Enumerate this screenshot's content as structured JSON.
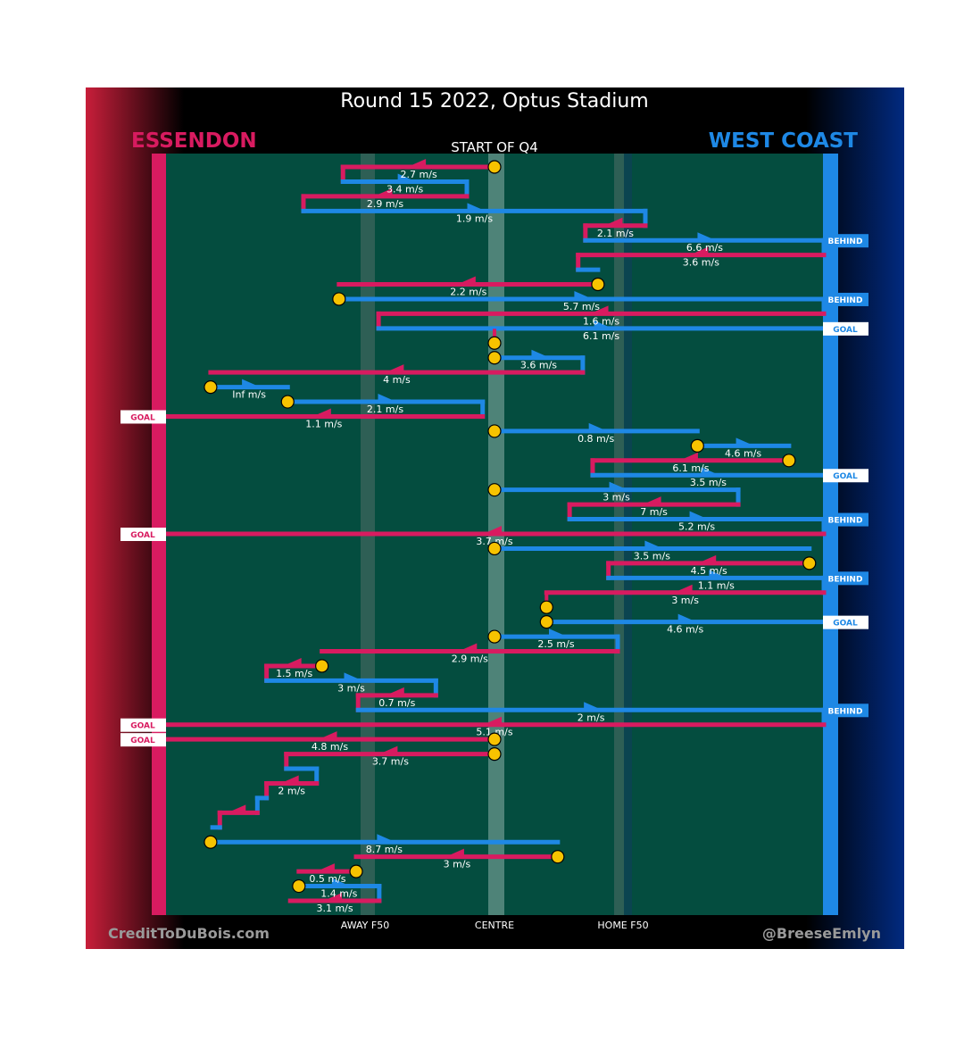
{
  "title": "Round 15 2022, Optus Stadium",
  "teams": {
    "home_left": {
      "name": "ESSENDON",
      "color": "#d81b60"
    },
    "away_right": {
      "name": "WEST COAST",
      "color": "#1e88e5"
    }
  },
  "period_label": "START OF Q4",
  "field_labels": {
    "away_f50": "AWAY F50",
    "centre": "CENTRE",
    "home_f50": "HOME F50"
  },
  "credits": {
    "left": "CreditToDuBois.com",
    "right": "@BreeseEmlyn"
  },
  "colors": {
    "field": "#044d3f",
    "marker": "#f7c300",
    "centre_band": "#4e8378",
    "f50_band": "#2e5f55"
  },
  "chart_data": {
    "type": "line",
    "description_axis": "field position (0 = Essendon end, 100 = West Coast end), one row per possession segment",
    "xlim": [
      0,
      100
    ],
    "segments": [
      {
        "team": "E",
        "from": 50,
        "to": 27.0,
        "speed": "2.7 m/s",
        "stoppage": true
      },
      {
        "team": "W",
        "from": 27.0,
        "to": 45.8,
        "speed": "3.4 m/s"
      },
      {
        "team": "E",
        "from": 45.8,
        "to": 21.0,
        "speed": "2.9 m/s"
      },
      {
        "team": "W",
        "from": 21.0,
        "to": 72.9,
        "speed": "1.9 m/s"
      },
      {
        "team": "E",
        "from": 72.9,
        "to": 63.8,
        "speed": "2.1 m/s"
      },
      {
        "team": "W",
        "from": 63.8,
        "to": 100,
        "speed": "6.6 m/s",
        "result": "BEHIND"
      },
      {
        "team": "E",
        "from": 100,
        "to": 62.7,
        "speed": "3.6 m/s"
      },
      {
        "team": "W",
        "from": 62.7,
        "to": 65.7,
        "speed": ""
      },
      {
        "team": "E",
        "from": 65.7,
        "to": 26.4,
        "speed": "2.2 m/s",
        "stoppage": true
      },
      {
        "team": "W",
        "from": 26.4,
        "to": 100,
        "speed": "5.7 m/s",
        "stoppage": true,
        "result": "BEHIND"
      },
      {
        "team": "E",
        "from": 100,
        "to": 32.4,
        "speed": "1.6 m/s"
      },
      {
        "team": "W",
        "from": 32.4,
        "to": 100,
        "speed": "6.1 m/s",
        "result": "GOAL"
      },
      {
        "team": "E",
        "from": 50,
        "to": 50,
        "speed": "",
        "stoppage": true
      },
      {
        "team": "W",
        "from": 50,
        "to": 63.4,
        "speed": "3.6 m/s",
        "stoppage": true
      },
      {
        "team": "E",
        "from": 63.4,
        "to": 6.9,
        "speed": "4 m/s"
      },
      {
        "team": "W",
        "from": 6.9,
        "to": 18.6,
        "speed": "Inf m/s",
        "stoppage": true
      },
      {
        "team": "W",
        "from": 18.6,
        "to": 48.2,
        "speed": "2.1 m/s",
        "stoppage": true
      },
      {
        "team": "E",
        "from": 48.2,
        "to": 0,
        "speed": "1.1 m/s",
        "result": "GOAL"
      },
      {
        "team": "W",
        "from": 50,
        "to": 80.8,
        "speed": "0.8 m/s",
        "stoppage": true
      },
      {
        "team": "W",
        "from": 80.8,
        "to": 94.7,
        "speed": "4.6 m/s",
        "stoppage": true
      },
      {
        "team": "E",
        "from": 94.7,
        "to": 64.9,
        "speed": "6.1 m/s",
        "stoppage": true
      },
      {
        "team": "W",
        "from": 64.9,
        "to": 100,
        "speed": "3.5 m/s",
        "result": "GOAL"
      },
      {
        "team": "W",
        "from": 50,
        "to": 87.0,
        "speed": "3 m/s",
        "stoppage": true
      },
      {
        "team": "E",
        "from": 87.0,
        "to": 61.4,
        "speed": "7 m/s"
      },
      {
        "team": "W",
        "from": 61.4,
        "to": 100,
        "speed": "5.2 m/s",
        "result": "BEHIND"
      },
      {
        "team": "E",
        "from": 100,
        "to": 0,
        "speed": "3.7 m/s",
        "result": "GOAL"
      },
      {
        "team": "W",
        "from": 50,
        "to": 97.8,
        "speed": "3.5 m/s",
        "stoppage": true
      },
      {
        "team": "E",
        "from": 97.8,
        "to": 67.3,
        "speed": "4.5 m/s",
        "stoppage": true
      },
      {
        "team": "W",
        "from": 67.3,
        "to": 100,
        "speed": "1.1 m/s",
        "result": "BEHIND"
      },
      {
        "team": "E",
        "from": 100,
        "to": 57.9,
        "speed": "3 m/s"
      },
      {
        "team": "E",
        "from": 57.9,
        "to": 57.9,
        "speed": "",
        "stoppage": true
      },
      {
        "team": "W",
        "from": 57.9,
        "to": 100,
        "speed": "4.6 m/s",
        "stoppage": true,
        "result": "GOAL"
      },
      {
        "team": "W",
        "from": 50,
        "to": 68.7,
        "speed": "2.5 m/s",
        "stoppage": true
      },
      {
        "team": "E",
        "from": 68.7,
        "to": 23.8,
        "speed": "2.9 m/s"
      },
      {
        "team": "E",
        "from": 23.8,
        "to": 15.4,
        "speed": "1.5 m/s",
        "stoppage": true
      },
      {
        "team": "W",
        "from": 15.4,
        "to": 41.1,
        "speed": "3 m/s"
      },
      {
        "team": "E",
        "from": 41.1,
        "to": 29.3,
        "speed": "0.7 m/s"
      },
      {
        "team": "W",
        "from": 29.3,
        "to": 100,
        "speed": "2 m/s",
        "result": "BEHIND"
      },
      {
        "team": "E",
        "from": 100,
        "to": 0,
        "speed": "5.1 m/s",
        "result": "GOAL"
      },
      {
        "team": "E",
        "from": 50,
        "to": 0,
        "speed": "4.8 m/s",
        "stoppage": true,
        "result": "GOAL"
      },
      {
        "team": "E",
        "from": 50,
        "to": 18.4,
        "speed": "3.7 m/s",
        "stoppage": true
      },
      {
        "team": "W",
        "from": 18.4,
        "to": 23.0,
        "speed": ""
      },
      {
        "team": "E",
        "from": 23.0,
        "to": 15.4,
        "speed": "2 m/s"
      },
      {
        "team": "W",
        "from": 15.4,
        "to": 14.0,
        "speed": ""
      },
      {
        "team": "E",
        "from": 14.0,
        "to": 8.3,
        "speed": ""
      },
      {
        "team": "W",
        "from": 8.3,
        "to": 7.2,
        "speed": ""
      },
      {
        "team": "W",
        "from": 6.9,
        "to": 59.6,
        "speed": "8.7 m/s",
        "stoppage": true
      },
      {
        "team": "E",
        "from": 59.6,
        "to": 29.0,
        "speed": "3 m/s",
        "stoppage": true
      },
      {
        "team": "E",
        "from": 29.0,
        "to": 20.3,
        "speed": "0.5 m/s",
        "stoppage": true
      },
      {
        "team": "W",
        "from": 20.3,
        "to": 32.5,
        "speed": "1.4 m/s",
        "stoppage": true
      },
      {
        "team": "E",
        "from": 32.5,
        "to": 19.0,
        "speed": "3.1 m/s"
      }
    ]
  }
}
